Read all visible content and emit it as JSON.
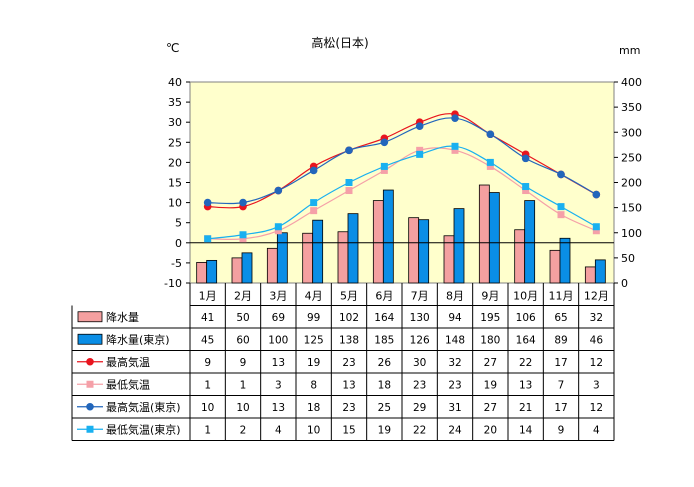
{
  "chart_data": {
    "type": "bar+line",
    "title": "高松(日本)",
    "left_unit": "℃",
    "right_unit": "mm",
    "left_ylim": [
      -10,
      40
    ],
    "left_ticks": [
      "40",
      "35",
      "30",
      "25",
      "20",
      "15",
      "10",
      "5",
      "0",
      "-5",
      "-10"
    ],
    "right_ylim": [
      0,
      400
    ],
    "right_ticks": [
      "400",
      "350",
      "300",
      "250",
      "200",
      "150",
      "100",
      "50",
      "0"
    ],
    "categories": [
      "1月",
      "2月",
      "3月",
      "4月",
      "5月",
      "6月",
      "7月",
      "8月",
      "9月",
      "10月",
      "11月",
      "12月"
    ],
    "series": [
      {
        "name": "降水量",
        "kind": "bar",
        "axis": "right",
        "color": "#f4a0a0",
        "values": [
          41,
          50,
          69,
          99,
          102,
          164,
          130,
          94,
          195,
          106,
          65,
          32
        ]
      },
      {
        "name": "降水量(東京)",
        "kind": "bar",
        "axis": "right",
        "color": "#0a8ee6",
        "values": [
          45,
          60,
          100,
          125,
          138,
          185,
          126,
          148,
          180,
          164,
          89,
          46
        ]
      },
      {
        "name": "最高気温",
        "kind": "line",
        "axis": "left",
        "color": "#e8141e",
        "marker": "circle",
        "values": [
          9,
          9,
          13,
          19,
          23,
          26,
          30,
          32,
          27,
          22,
          17,
          12
        ]
      },
      {
        "name": "最低気温",
        "kind": "line",
        "axis": "left",
        "color": "#f5a0a8",
        "marker": "square",
        "values": [
          1,
          1,
          3,
          8,
          13,
          18,
          23,
          23,
          19,
          13,
          7,
          3
        ]
      },
      {
        "name": "最高気温(東京)",
        "kind": "line",
        "axis": "left",
        "color": "#2266bb",
        "marker": "circle",
        "values": [
          10,
          10,
          13,
          18,
          23,
          25,
          29,
          31,
          27,
          21,
          17,
          12
        ]
      },
      {
        "name": "最低気温(東京)",
        "kind": "line",
        "axis": "left",
        "color": "#19b0f0",
        "marker": "square",
        "values": [
          1,
          2,
          4,
          10,
          15,
          19,
          22,
          24,
          20,
          14,
          9,
          4
        ]
      }
    ],
    "plot_background": "#ffffcc",
    "grid": false,
    "legend": "table below chart"
  }
}
